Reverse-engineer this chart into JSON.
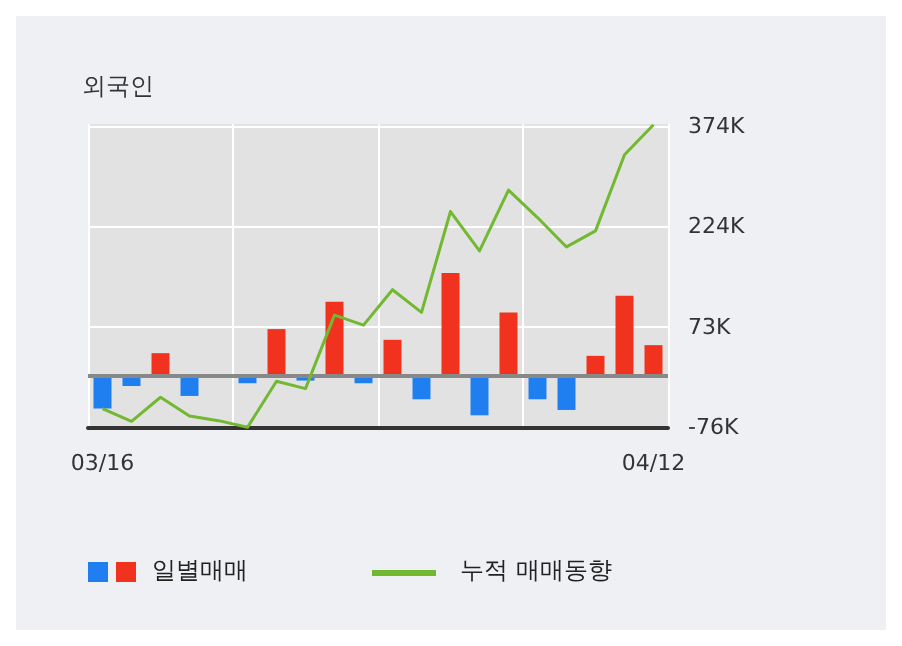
{
  "chart_data": {
    "type": "bar",
    "title": "외국인",
    "categories": [
      "03/16",
      null,
      null,
      null,
      null,
      null,
      null,
      null,
      null,
      null,
      null,
      null,
      null,
      null,
      null,
      null,
      null,
      null,
      null,
      "04/12"
    ],
    "series": [
      {
        "name": "일별매매",
        "values": [
          -49,
          -15,
          34,
          -30,
          0,
          -11,
          70,
          -7,
          111,
          -11,
          54,
          -35,
          154,
          -59,
          95,
          -35,
          -51,
          30,
          120,
          46
        ],
        "colors": [
          "#1f7ef0",
          "#1f7ef0",
          "#f0321e",
          "#1f7ef0",
          "#1f7ef0",
          "#1f7ef0",
          "#f0321e",
          "#1f7ef0",
          "#f0321e",
          "#1f7ef0",
          "#f0321e",
          "#1f7ef0",
          "#f0321e",
          "#1f7ef0",
          "#f0321e",
          "#1f7ef0",
          "#1f7ef0",
          "#f0321e",
          "#f0321e",
          "#f0321e"
        ]
      },
      {
        "name": "누적 매매동향",
        "type": "line",
        "color": "#72b830",
        "values": [
          -49,
          -68,
          -32,
          -60,
          -67,
          -77,
          -8,
          -19,
          91,
          76,
          129,
          95,
          246,
          187,
          278,
          237,
          193,
          217,
          331,
          376
        ]
      }
    ],
    "ylim": [
      -78,
      377
    ],
    "yticks": [
      {
        "value": -76,
        "label": "-76K"
      },
      {
        "value": 73,
        "label": "73K"
      },
      {
        "value": 224,
        "label": "224K"
      },
      {
        "value": 374,
        "label": "374K"
      }
    ],
    "grid": true,
    "legend": "bottom",
    "marker": "none"
  }
}
